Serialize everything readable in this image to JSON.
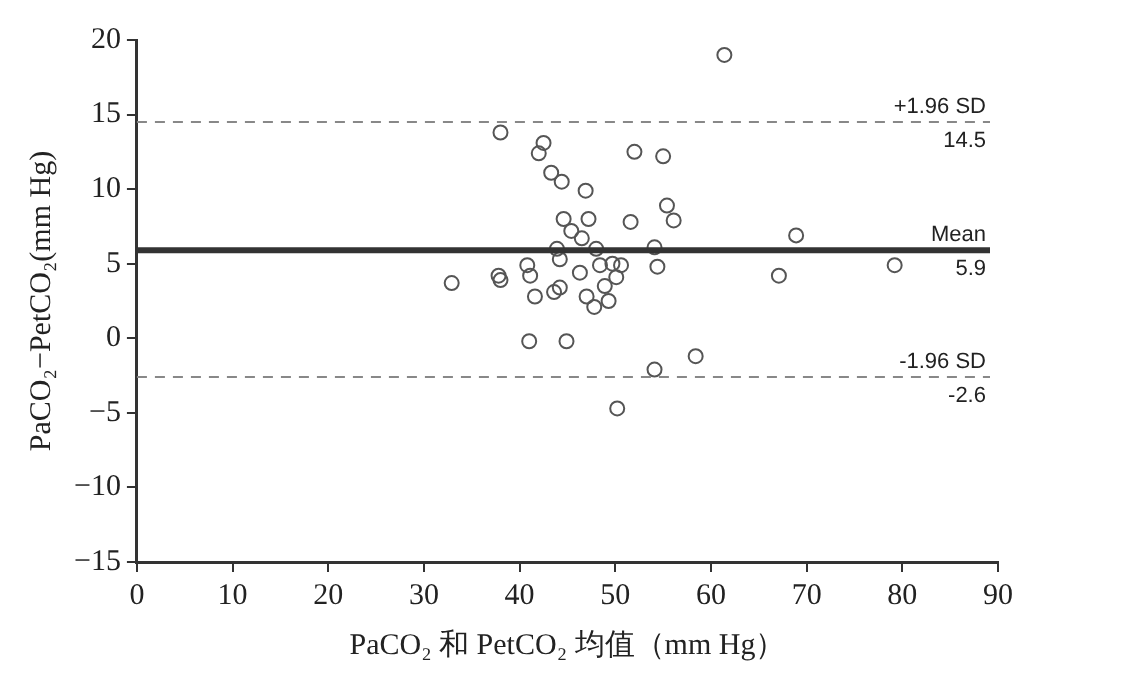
{
  "chart_data": {
    "type": "scatter",
    "xlabel": "PaCO₂ 和 PetCO₂ 均值（mm Hg）",
    "ylabel": "PaCO₂−PetCO₂(mm Hg)",
    "x": [
      61.4,
      38.0,
      42.5,
      42.0,
      52.0,
      55.0,
      43.3,
      44.4,
      46.9,
      55.4,
      56.1,
      44.6,
      47.2,
      51.6,
      45.4,
      46.5,
      68.9,
      43.9,
      48.0,
      54.1,
      44.2,
      40.8,
      48.4,
      49.7,
      50.6,
      54.4,
      67.1,
      32.9,
      37.8,
      38.0,
      41.1,
      46.3,
      50.1,
      44.2,
      43.6,
      48.9,
      41.6,
      47.0,
      49.3,
      47.8,
      41.0,
      44.9,
      58.4,
      54.1,
      50.2,
      79.2
    ],
    "values": [
      19.0,
      13.8,
      13.1,
      12.4,
      12.5,
      12.2,
      11.1,
      10.5,
      9.9,
      8.9,
      7.9,
      8.0,
      8.0,
      7.8,
      7.2,
      6.7,
      6.9,
      6.0,
      6.0,
      6.1,
      5.3,
      4.9,
      4.9,
      5.0,
      4.9,
      4.8,
      4.2,
      3.7,
      4.2,
      3.9,
      4.2,
      4.4,
      4.1,
      3.4,
      3.1,
      3.5,
      2.8,
      2.8,
      2.5,
      2.1,
      -0.2,
      -0.2,
      -1.2,
      -2.1,
      -4.7,
      4.9
    ],
    "color": "#555555",
    "marker": "circle",
    "xlim": [
      0,
      90
    ],
    "xticks": [
      0,
      10,
      20,
      30,
      40,
      50,
      60,
      70,
      80,
      90
    ],
    "ylim": [
      -15,
      20
    ],
    "yticks": [
      -15,
      -10,
      -5,
      0,
      5,
      10,
      15,
      20
    ],
    "ref_lines": [
      {
        "axis": "y",
        "value": 14.5,
        "label": "+1.96 SD",
        "color": "#888888",
        "line_style": "dashed"
      },
      {
        "axis": "y",
        "value": 5.9,
        "label": "Mean",
        "color": "#333333",
        "line_style": "solid"
      },
      {
        "axis": "y",
        "value": -2.6,
        "label": "-1.96 SD",
        "color": "#888888",
        "line_style": "dashed"
      }
    ],
    "annotations": [
      {
        "text": "14.5",
        "y": 14.5
      },
      {
        "text": "5.9",
        "y": 5.9
      },
      {
        "text": "-2.6",
        "y": -2.6
      }
    ],
    "grid": false,
    "legend": false
  }
}
